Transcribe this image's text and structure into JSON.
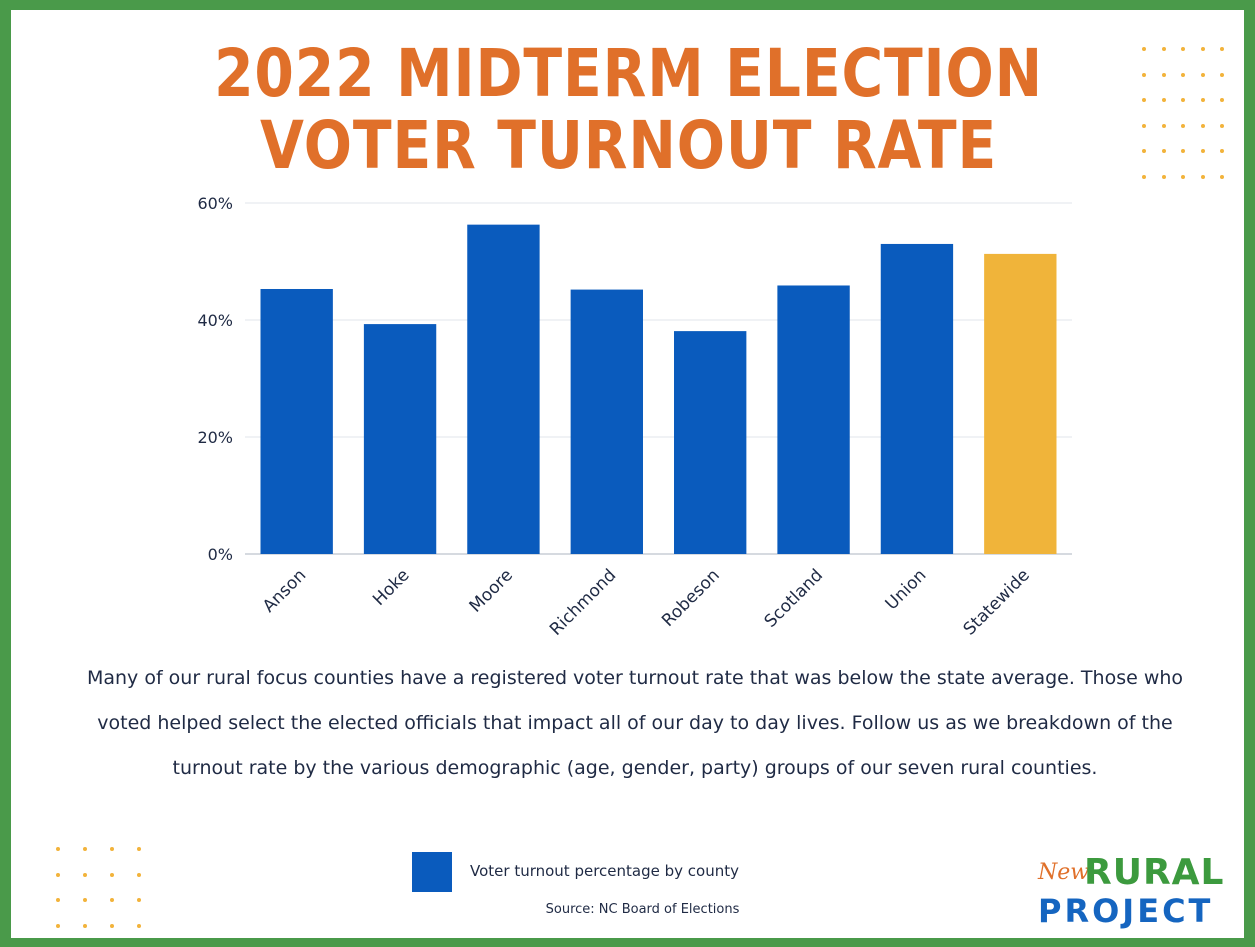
{
  "title": {
    "line1": "2022 MIDTERM ELECTION",
    "line2": "VOTER TURNOUT RATE"
  },
  "chart_data": {
    "type": "bar",
    "categories": [
      "Anson",
      "Hoke",
      "Moore",
      "Richmond",
      "Robeson",
      "Scotland",
      "Union",
      "Statewide"
    ],
    "series": [
      {
        "name": "Voter turnout percentage by county",
        "values": [
          45.3,
          39.3,
          56.3,
          45.2,
          38.1,
          45.9,
          53.0,
          51.3
        ]
      }
    ],
    "ylim": [
      0,
      60
    ],
    "yticks": [
      0,
      20,
      40,
      60
    ],
    "ytick_labels": [
      "0%",
      "20%",
      "40%",
      "60%"
    ],
    "grid": true,
    "colors": {
      "county": "#0a5bbd",
      "statewide": "#f0b43a"
    },
    "highlight_category": "Statewide"
  },
  "body_text": "Many of our rural focus counties have a registered voter turnout rate that was below the state average. Those who voted helped select the elected officials that impact all of our day to day lives. Follow us as we breakdown of the turnout rate by the various demographic (age, gender, party) groups of our seven rural counties.",
  "legend": {
    "label": "Voter turnout percentage by county"
  },
  "source": "Source: NC Board of Elections",
  "logo": {
    "new": "New",
    "rural": "RURAL",
    "project": "PROJECT"
  }
}
